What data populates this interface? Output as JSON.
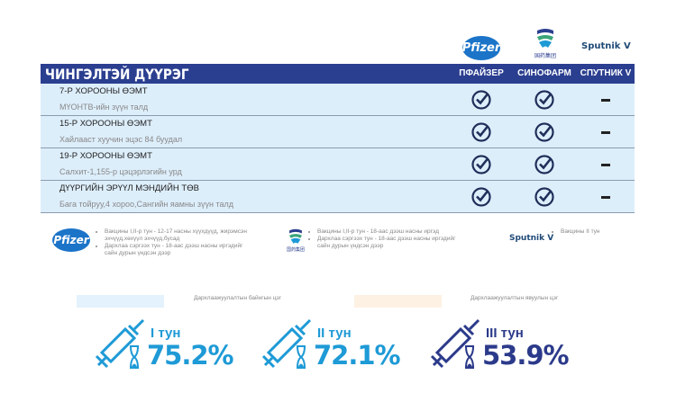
{
  "logos": {
    "pfizer": "Pfizer",
    "sinopharm": "国药集团",
    "sputnik": "Sputnik V"
  },
  "header": {
    "title": "ЧИНГЭЛТЭЙ ДҮҮРЭГ",
    "columns": [
      "ПФАЙЗЕР",
      "СИНОФАРМ",
      "СПУТНИК V"
    ]
  },
  "rows": [
    {
      "name": "7-Р ХОРООНЫ ӨЭМТ",
      "address": "МҮОНТВ-ийн зүүн талд",
      "pfizer": true,
      "sinopharm": true,
      "sputnik": false
    },
    {
      "name": "15-Р ХОРООНЫ ӨЭМТ",
      "address": "Хайлааст хуучин эцэс 84 буудал",
      "pfizer": true,
      "sinopharm": true,
      "sputnik": false
    },
    {
      "name": "19-Р ХОРООНЫ ӨЭМТ",
      "address": "Салхит-1,155-р цэцэрлэгийн урд",
      "pfizer": true,
      "sinopharm": true,
      "sputnik": false
    },
    {
      "name": "ДҮҮРГИЙН ЭРҮҮЛ МЭНДИЙН ТӨВ",
      "address": "Бага тойруу,4 хороо,Сангийн яамны зүүн талд",
      "pfizer": true,
      "sinopharm": true,
      "sputnik": false
    }
  ],
  "notes": {
    "pfizer": [
      "Вакцины I,II-р тун - 12-17 насны хүүхдүүд, жирэмсэн эхчүүд,хөхүүл эхчүүд,бусад",
      "Дархлаа сэргээх тун - 18-аас дээш насны иргэдийг сайн дурын үндсэн дээр"
    ],
    "sinopharm": [
      "Вакцины I,II-р тун - 18-аас дээш насны иргэд",
      "Дархлаа сэргээх тун - 18-аас дээш насны иргэдийг сайн дурын үндсэн дээр"
    ],
    "sputnik": [
      "Вакцины II тун"
    ]
  },
  "legend": {
    "light_blue": "Дархлаажуулалтын байнгын цэг",
    "light_orange": "Дархлаажуулалтын явуулын цэг"
  },
  "stats": [
    {
      "label": "I тун",
      "value": "75.2%",
      "color": "#1e9ad6"
    },
    {
      "label": "II тун",
      "value": "72.1%",
      "color": "#1e9ad6"
    },
    {
      "label": "III тун",
      "value": "53.9%",
      "color": "#2b3a8a"
    }
  ],
  "colors": {
    "header": "#2b3f90",
    "row": "#ddeefb",
    "check": "#1f2f5a"
  }
}
